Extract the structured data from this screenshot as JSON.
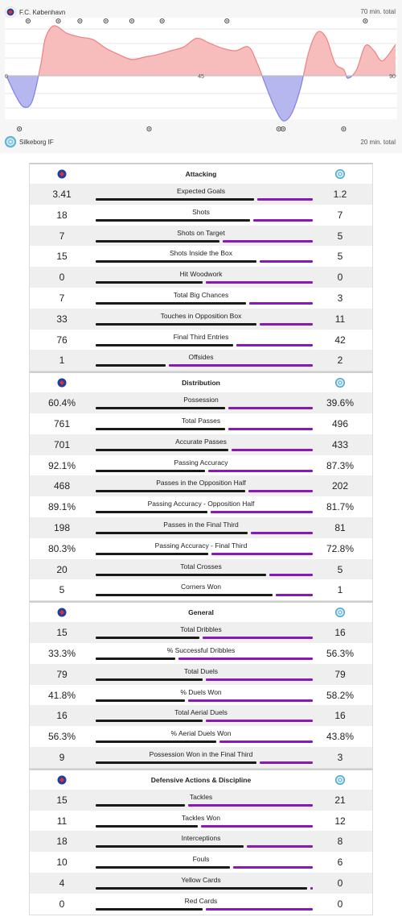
{
  "home_team": {
    "name": "F.C. København",
    "total": "70 min. total"
  },
  "away_team": {
    "name": "Silkeborg IF",
    "total": "20 min. total"
  },
  "momentum": {
    "axis_ticks": [
      "0",
      "45",
      "90"
    ],
    "home_events": [
      5,
      12,
      17,
      23,
      29,
      36,
      51,
      83
    ],
    "away_events": [
      3,
      33,
      63,
      64,
      78
    ],
    "curve": [
      [
        0,
        0
      ],
      [
        2,
        -15
      ],
      [
        4,
        -25
      ],
      [
        6,
        -20
      ],
      [
        8,
        10
      ],
      [
        9,
        30
      ],
      [
        11,
        40
      ],
      [
        14,
        34
      ],
      [
        17,
        31
      ],
      [
        20,
        29
      ],
      [
        23,
        22
      ],
      [
        26,
        17
      ],
      [
        29,
        13
      ],
      [
        32,
        15
      ],
      [
        35,
        17
      ],
      [
        38,
        20
      ],
      [
        41,
        23
      ],
      [
        44,
        30
      ],
      [
        47,
        26
      ],
      [
        50,
        22
      ],
      [
        53,
        20
      ],
      [
        56,
        23
      ],
      [
        58,
        10
      ],
      [
        60,
        -8
      ],
      [
        62,
        -25
      ],
      [
        64,
        -36
      ],
      [
        66,
        -30
      ],
      [
        68,
        -10
      ],
      [
        70,
        20
      ],
      [
        72,
        35
      ],
      [
        74,
        30
      ],
      [
        76,
        10
      ],
      [
        78,
        5
      ],
      [
        79,
        -2
      ],
      [
        81,
        5
      ],
      [
        83,
        24
      ],
      [
        85,
        20
      ],
      [
        87,
        12
      ],
      [
        90,
        25
      ]
    ],
    "colors": {
      "home": "#f08080",
      "away": "#8080e8"
    }
  },
  "sections": [
    {
      "title": "Attacking",
      "rows": [
        {
          "label": "Expected Goals",
          "home": "3.41",
          "away": "1.2",
          "home_share": 0.74
        },
        {
          "label": "Shots",
          "home": "18",
          "away": "7",
          "home_share": 0.72
        },
        {
          "label": "Shots on Target",
          "home": "7",
          "away": "5",
          "home_share": 0.58
        },
        {
          "label": "Shots Inside the Box",
          "home": "15",
          "away": "5",
          "home_share": 0.75
        },
        {
          "label": "Hit Woodwork",
          "home": "0",
          "away": "0",
          "home_share": 0.5
        },
        {
          "label": "Total Big Chances",
          "home": "7",
          "away": "3",
          "home_share": 0.7
        },
        {
          "label": "Touches in Opposition Box",
          "home": "33",
          "away": "11",
          "home_share": 0.75
        },
        {
          "label": "Final Third Entries",
          "home": "76",
          "away": "42",
          "home_share": 0.64
        },
        {
          "label": "Offsides",
          "home": "1",
          "away": "2",
          "home_share": 0.33
        }
      ]
    },
    {
      "title": "Distribution",
      "rows": [
        {
          "label": "Possession",
          "home": "60.4%",
          "away": "39.6%",
          "home_share": 0.604
        },
        {
          "label": "Total Passes",
          "home": "761",
          "away": "496",
          "home_share": 0.605
        },
        {
          "label": "Accurate Passes",
          "home": "701",
          "away": "433",
          "home_share": 0.618
        },
        {
          "label": "Passing Accuracy",
          "home": "92.1%",
          "away": "87.3%",
          "home_share": 0.513
        },
        {
          "label": "Passes in the Opposition Half",
          "home": "468",
          "away": "202",
          "home_share": 0.698
        },
        {
          "label": "Passing Accuracy - Opposition Half",
          "home": "89.1%",
          "away": "81.7%",
          "home_share": 0.522
        },
        {
          "label": "Passes in the Final Third",
          "home": "198",
          "away": "81",
          "home_share": 0.71
        },
        {
          "label": "Passing Accuracy - Final Third",
          "home": "80.3%",
          "away": "72.8%",
          "home_share": 0.525
        },
        {
          "label": "Total Crosses",
          "home": "20",
          "away": "5",
          "home_share": 0.8
        },
        {
          "label": "Corners Won",
          "home": "5",
          "away": "1",
          "home_share": 0.83
        }
      ]
    },
    {
      "title": "General",
      "rows": [
        {
          "label": "Total Dribbles",
          "home": "15",
          "away": "16",
          "home_share": 0.484
        },
        {
          "label": "% Successful Dribbles",
          "home": "33.3%",
          "away": "56.3%",
          "home_share": 0.372
        },
        {
          "label": "Total Duels",
          "home": "79",
          "away": "79",
          "home_share": 0.5
        },
        {
          "label": "% Duels Won",
          "home": "41.8%",
          "away": "58.2%",
          "home_share": 0.418
        },
        {
          "label": "Total Aerial Duels",
          "home": "16",
          "away": "16",
          "home_share": 0.5
        },
        {
          "label": "% Aerial Duels Won",
          "home": "56.3%",
          "away": "43.8%",
          "home_share": 0.563
        },
        {
          "label": "Possession Won in the Final Third",
          "home": "9",
          "away": "3",
          "home_share": 0.75
        }
      ]
    },
    {
      "title": "Defensive Actions & Discipline",
      "rows": [
        {
          "label": "Tackles",
          "home": "15",
          "away": "21",
          "home_share": 0.417
        },
        {
          "label": "Tackles Won",
          "home": "11",
          "away": "12",
          "home_share": 0.478
        },
        {
          "label": "Interceptions",
          "home": "18",
          "away": "8",
          "home_share": 0.69
        },
        {
          "label": "Fouls",
          "home": "10",
          "away": "6",
          "home_share": 0.625
        },
        {
          "label": "Yellow Cards",
          "home": "4",
          "away": "0",
          "home_share": 0.99
        },
        {
          "label": "Red Cards",
          "home": "0",
          "away": "0",
          "home_share": 0.5
        }
      ]
    }
  ]
}
